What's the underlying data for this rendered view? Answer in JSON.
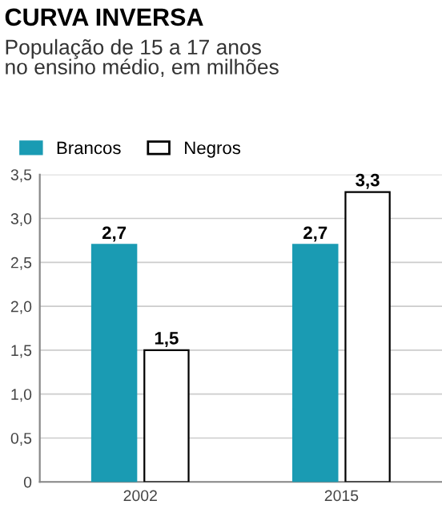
{
  "chart_data": {
    "type": "bar",
    "title": "CURVA INVERSA",
    "subtitle": "População de 15 a 17 anos\nno ensino médio, em milhões",
    "categories": [
      "2002",
      "2015"
    ],
    "series": [
      {
        "name": "Brancos",
        "color": "#1a9bb3",
        "values": [
          2.7,
          2.7
        ],
        "value_labels": [
          "2,7",
          "2,7"
        ]
      },
      {
        "name": "Negros",
        "color": "#ffffff",
        "values": [
          1.5,
          3.3
        ],
        "value_labels": [
          "1,5",
          "3,3"
        ]
      }
    ],
    "ylim": [
      0,
      3.5
    ],
    "yticks": [
      0,
      {
        "value": 0.5,
        "label": "0,5"
      },
      {
        "value": 1.0,
        "label": "1,0"
      },
      {
        "value": 1.5,
        "label": "1,5"
      },
      {
        "value": 2.0,
        "label": "2,0"
      },
      {
        "value": 2.5,
        "label": "2,5"
      },
      {
        "value": 3.0,
        "label": "3,0"
      },
      {
        "value": 3.5,
        "label": "3,5"
      }
    ],
    "grid": "y",
    "legend": "top left"
  }
}
